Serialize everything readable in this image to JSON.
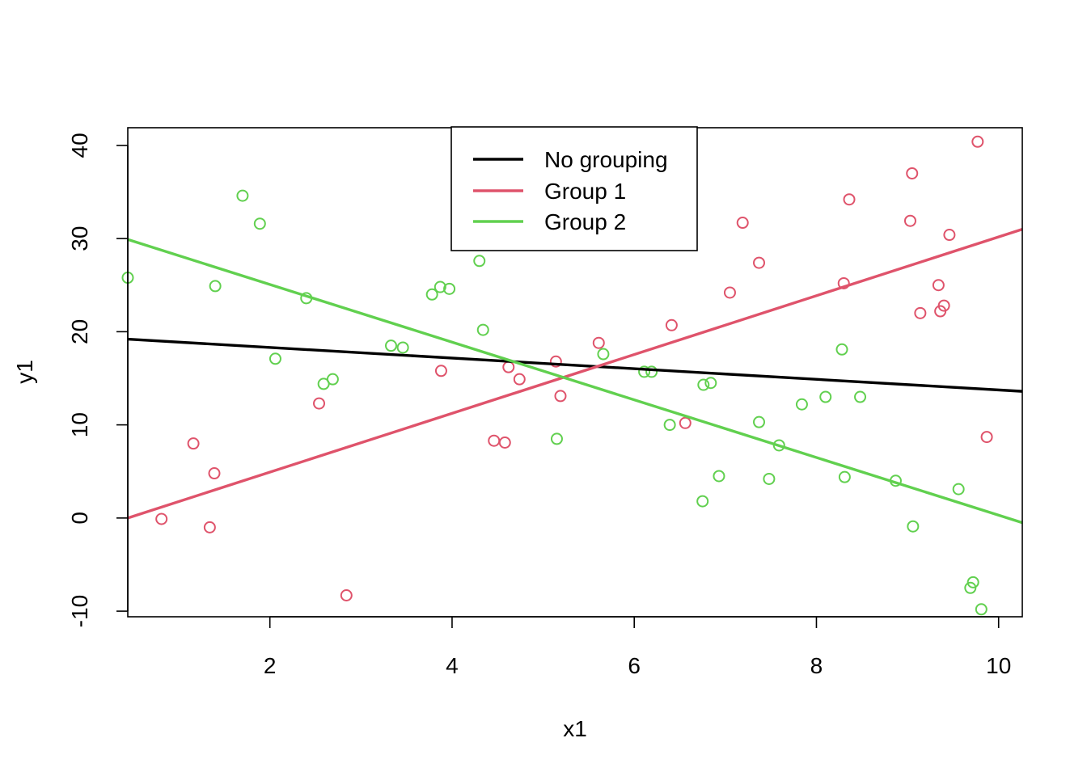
{
  "chart_data": {
    "type": "scatter",
    "title": "",
    "xlabel": "x1",
    "ylabel": "y1",
    "xlim": [
      0.44,
      10.26
    ],
    "ylim": [
      -10.6,
      41.9
    ],
    "x_ticks": [
      2,
      4,
      6,
      8,
      10
    ],
    "y_ticks": [
      -10,
      0,
      10,
      20,
      30,
      40
    ],
    "grid": false,
    "legend": {
      "position": "top-center",
      "entries": [
        {
          "label": "No grouping",
          "color": "#000000"
        },
        {
          "label": "Group 1",
          "color": "#DF536B"
        },
        {
          "label": "Group 2",
          "color": "#61D04F"
        }
      ]
    },
    "lines": [
      {
        "name": "No grouping",
        "color": "#000000",
        "x": [
          0.44,
          10.26
        ],
        "y": [
          19.2,
          13.6
        ]
      },
      {
        "name": "Group 1",
        "color": "#DF536B",
        "x": [
          0.44,
          10.26
        ],
        "y": [
          0.0,
          31.0
        ]
      },
      {
        "name": "Group 2",
        "color": "#61D04F",
        "x": [
          0.44,
          10.26
        ],
        "y": [
          29.9,
          -0.5
        ]
      }
    ],
    "series": [
      {
        "name": "Group 1",
        "color": "#DF536B",
        "points": [
          [
            0.81,
            -0.1
          ],
          [
            1.16,
            8.0
          ],
          [
            1.34,
            -1.0
          ],
          [
            1.39,
            4.8
          ],
          [
            2.54,
            12.3
          ],
          [
            2.84,
            -8.3
          ],
          [
            3.88,
            15.8
          ],
          [
            4.46,
            8.3
          ],
          [
            4.58,
            8.1
          ],
          [
            4.62,
            16.2
          ],
          [
            4.74,
            14.9
          ],
          [
            5.14,
            16.8
          ],
          [
            5.19,
            13.1
          ],
          [
            5.61,
            18.8
          ],
          [
            6.41,
            20.7
          ],
          [
            6.56,
            10.2
          ],
          [
            7.05,
            24.2
          ],
          [
            7.19,
            31.7
          ],
          [
            7.37,
            27.4
          ],
          [
            8.3,
            25.2
          ],
          [
            8.36,
            34.2
          ],
          [
            9.03,
            31.9
          ],
          [
            9.05,
            37.0
          ],
          [
            9.14,
            22.0
          ],
          [
            9.34,
            25.0
          ],
          [
            9.36,
            22.2
          ],
          [
            9.4,
            22.8
          ],
          [
            9.46,
            30.4
          ],
          [
            9.77,
            40.4
          ],
          [
            9.87,
            8.7
          ]
        ]
      },
      {
        "name": "Group 2",
        "color": "#61D04F",
        "points": [
          [
            0.44,
            25.8
          ],
          [
            1.4,
            24.9
          ],
          [
            1.7,
            34.6
          ],
          [
            1.89,
            31.6
          ],
          [
            2.06,
            17.1
          ],
          [
            2.4,
            23.6
          ],
          [
            2.59,
            14.4
          ],
          [
            2.69,
            14.9
          ],
          [
            3.33,
            18.5
          ],
          [
            3.46,
            18.3
          ],
          [
            3.78,
            24.0
          ],
          [
            3.87,
            24.8
          ],
          [
            3.97,
            24.6
          ],
          [
            4.3,
            27.6
          ],
          [
            4.34,
            20.2
          ],
          [
            5.15,
            8.5
          ],
          [
            5.66,
            17.6
          ],
          [
            6.11,
            15.7
          ],
          [
            6.19,
            15.7
          ],
          [
            6.39,
            10.0
          ],
          [
            6.75,
            1.8
          ],
          [
            6.76,
            14.3
          ],
          [
            6.84,
            14.5
          ],
          [
            6.93,
            4.5
          ],
          [
            7.37,
            10.3
          ],
          [
            7.48,
            4.2
          ],
          [
            7.59,
            7.8
          ],
          [
            7.84,
            12.2
          ],
          [
            8.1,
            13.0
          ],
          [
            8.28,
            18.1
          ],
          [
            8.31,
            4.4
          ],
          [
            8.48,
            13.0
          ],
          [
            8.87,
            4.0
          ],
          [
            9.06,
            -0.9
          ],
          [
            9.56,
            3.1
          ],
          [
            9.69,
            -7.5
          ],
          [
            9.72,
            -6.9
          ],
          [
            9.81,
            -9.8
          ]
        ]
      }
    ]
  }
}
